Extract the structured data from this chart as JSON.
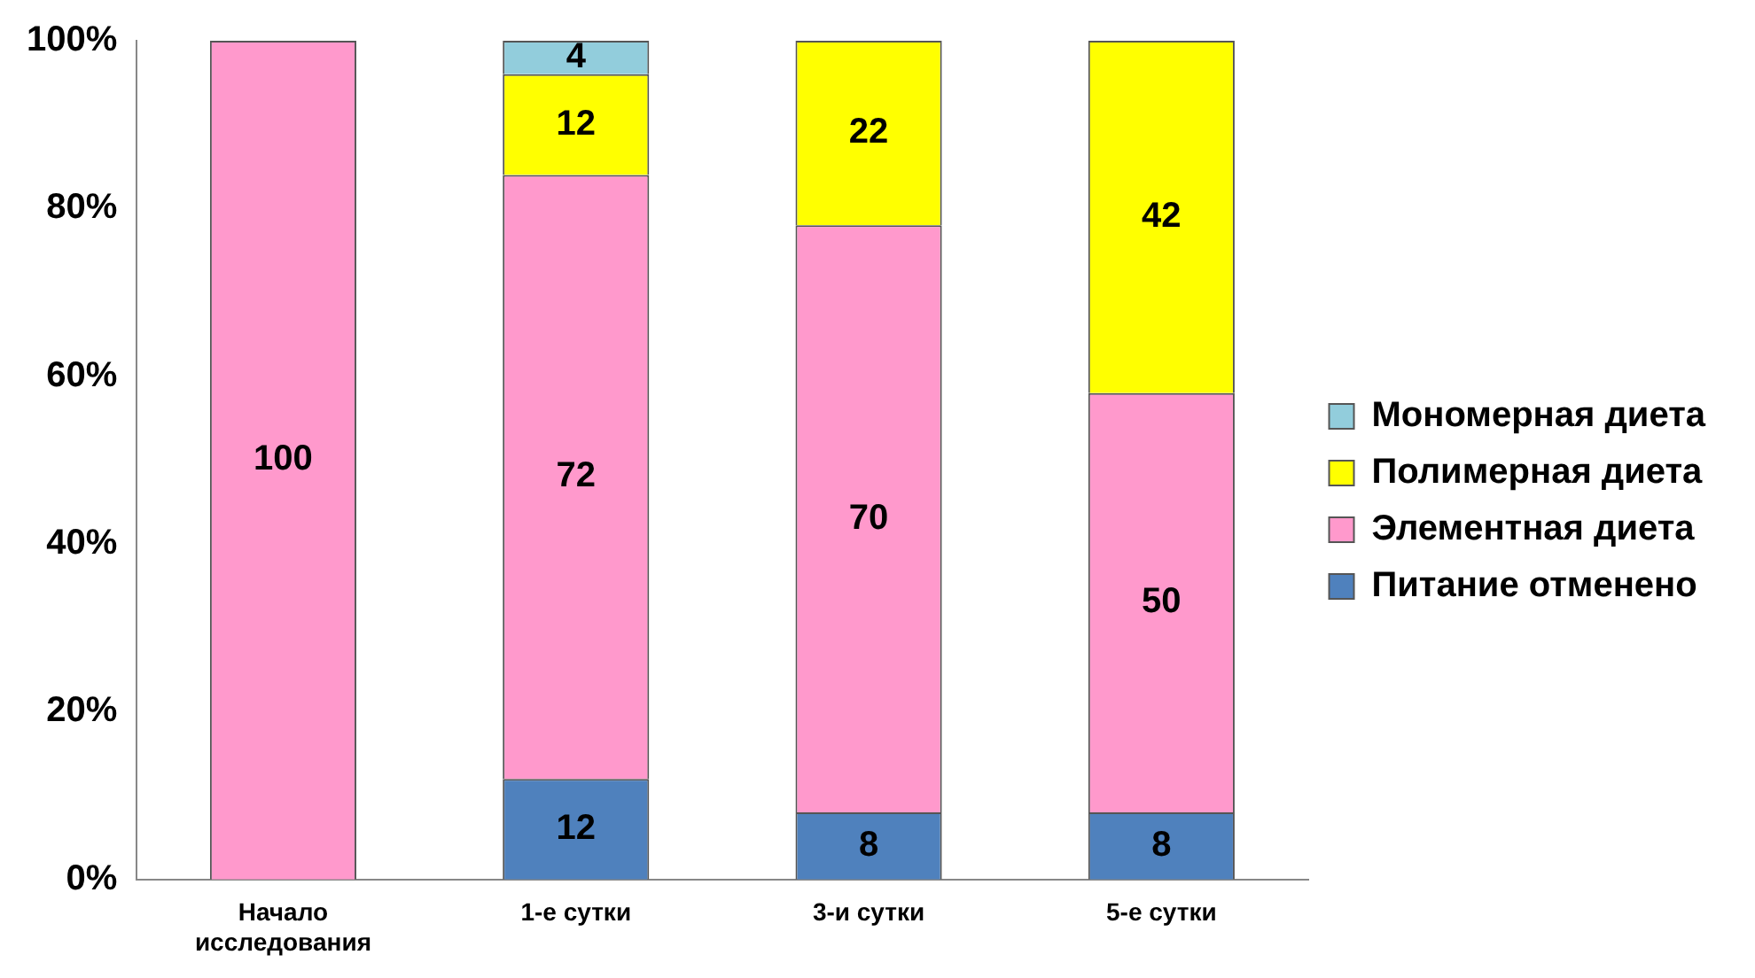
{
  "chart_data": {
    "type": "bar",
    "stacked": true,
    "categories": [
      "Начало исследования",
      "1-е сутки",
      "3-и сутки",
      "5-е сутки"
    ],
    "series": [
      {
        "name": "Питание отменено",
        "color": "#4f81bd",
        "values": [
          0,
          12,
          8,
          8
        ],
        "value_labels": [
          null,
          "12",
          "8",
          "8"
        ]
      },
      {
        "name": "Элементная диета",
        "color": "#ff99cc",
        "values": [
          100,
          72,
          70,
          50
        ],
        "value_labels": [
          "100",
          "72",
          "70",
          "50"
        ]
      },
      {
        "name": "Полимерная диета",
        "color": "#ffff00",
        "values": [
          0,
          12,
          22,
          42
        ],
        "value_labels": [
          null,
          "12",
          "22",
          "42"
        ]
      },
      {
        "name": "Мономерная диета",
        "color": "#92cddc",
        "values": [
          0,
          4,
          0,
          0
        ],
        "value_labels": [
          null,
          "4",
          null,
          null
        ]
      }
    ],
    "ylim": [
      0,
      100
    ],
    "yticks": [
      {
        "value": 0,
        "label": "0%"
      },
      {
        "value": 20,
        "label": "20%"
      },
      {
        "value": 40,
        "label": "40%"
      },
      {
        "value": 60,
        "label": "60%"
      },
      {
        "value": 80,
        "label": "80%"
      },
      {
        "value": 100,
        "label": "100%"
      }
    ],
    "grid": false,
    "legend": "right"
  }
}
